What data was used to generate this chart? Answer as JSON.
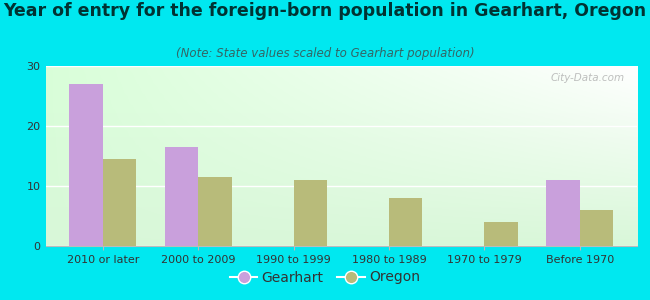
{
  "title": "Year of entry for the foreign-born population in Gearhart, Oregon",
  "subtitle": "(Note: State values scaled to Gearhart population)",
  "categories": [
    "2010 or later",
    "2000 to 2009",
    "1990 to 1999",
    "1980 to 1989",
    "1970 to 1979",
    "Before 1970"
  ],
  "gearhart_values": [
    27,
    16.5,
    0,
    0,
    0,
    11
  ],
  "oregon_values": [
    14.5,
    11.5,
    11,
    8,
    4,
    6
  ],
  "gearhart_color": "#c9a0dc",
  "oregon_color": "#b8bb7a",
  "background_color": "#00e8f0",
  "ylim": [
    0,
    30
  ],
  "yticks": [
    0,
    10,
    20,
    30
  ],
  "bar_width": 0.35,
  "title_fontsize": 12.5,
  "subtitle_fontsize": 8.5,
  "tick_fontsize": 8,
  "legend_fontsize": 10,
  "watermark": "City-Data.com",
  "title_color": "#003333",
  "subtitle_color": "#336666"
}
